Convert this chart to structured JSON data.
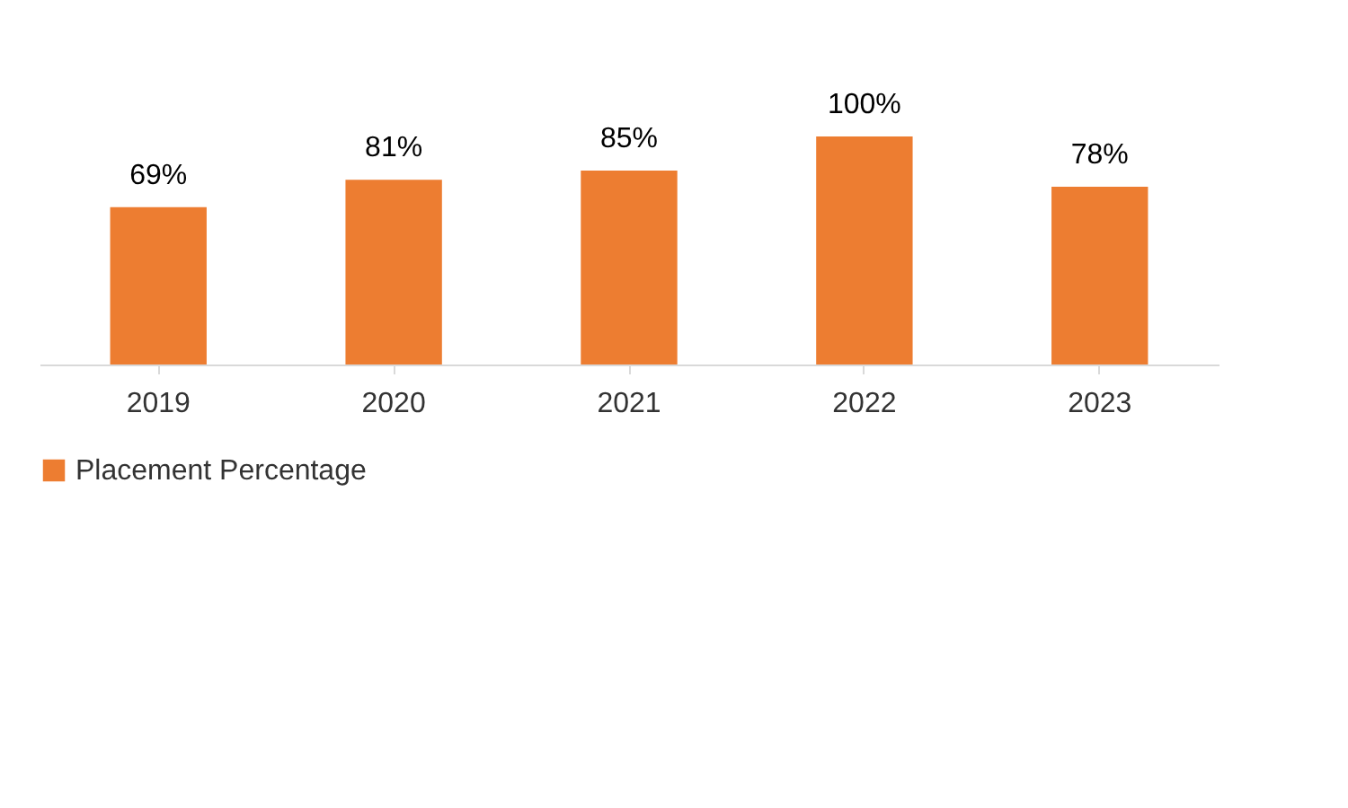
{
  "chart_data": {
    "type": "bar",
    "categories": [
      "2019",
      "2020",
      "2021",
      "2022",
      "2023"
    ],
    "series": [
      {
        "name": "Placement Percentage",
        "color": "#ed7d31",
        "values": [
          69,
          81,
          85,
          100,
          78
        ],
        "value_labels": [
          "69%",
          "81%",
          "85%",
          "100%",
          "78%"
        ]
      }
    ],
    "legend": "bottom"
  }
}
